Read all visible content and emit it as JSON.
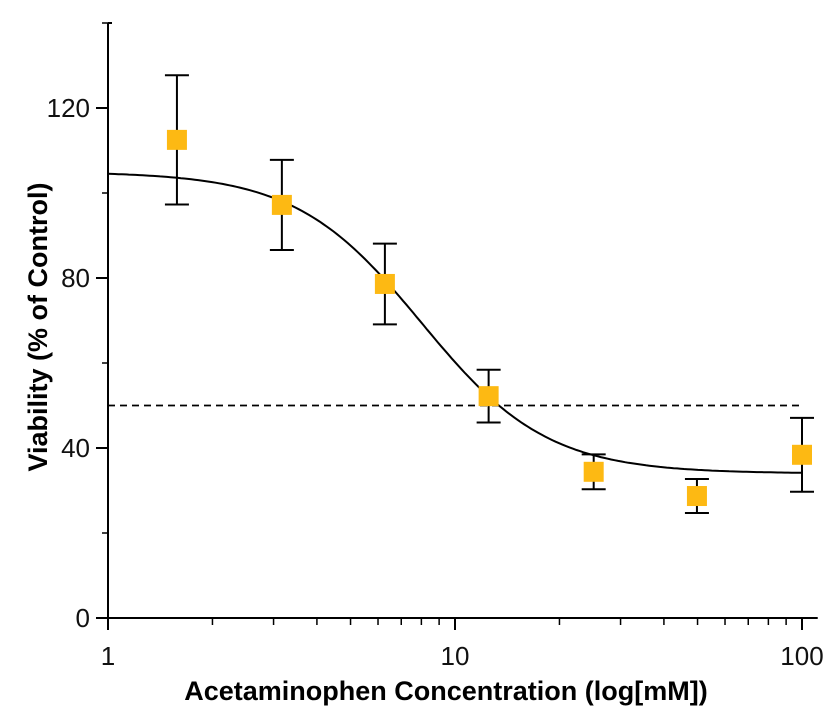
{
  "chart_data": {
    "type": "scatter",
    "xlabel": "Acetaminophen Concentration (log[mM])",
    "ylabel": "Viability (% of Control)",
    "x_scale": "log",
    "xlim": [
      1,
      111
    ],
    "ylim": [
      0,
      140
    ],
    "x_ticks": [
      1,
      10,
      100
    ],
    "x_tick_labels": [
      "1",
      "10",
      "100"
    ],
    "y_ticks": [
      0,
      40,
      80,
      120
    ],
    "y_tick_labels": [
      "0",
      "40",
      "80",
      "120"
    ],
    "y_minor_ticks": [
      20,
      60,
      100,
      140
    ],
    "grid": false,
    "marker_color": "#FDB913",
    "points": [
      {
        "x": 1.58,
        "y": 112.5,
        "err": 15.2
      },
      {
        "x": 3.17,
        "y": 97.2,
        "err": 10.6
      },
      {
        "x": 6.28,
        "y": 78.6,
        "err": 9.5
      },
      {
        "x": 12.5,
        "y": 52.2,
        "err": 6.2
      },
      {
        "x": 25.1,
        "y": 34.4,
        "err": 4.1
      },
      {
        "x": 49.8,
        "y": 28.7,
        "err": 4.0
      },
      {
        "x": 100,
        "y": 38.4,
        "err": 8.7
      }
    ],
    "fit_curve": {
      "model": "4PL",
      "top": 105,
      "bottom": 34,
      "ec50": 8,
      "hill": 2.4
    },
    "reference_line": {
      "y": 50,
      "style": "dashed"
    }
  }
}
